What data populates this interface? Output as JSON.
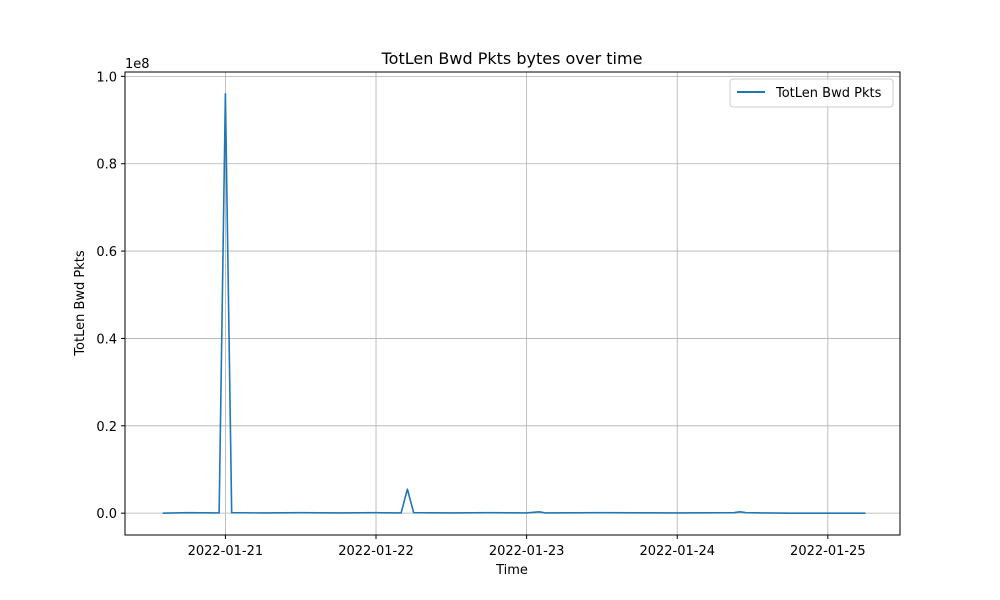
{
  "chart_data": {
    "type": "line",
    "title": "TotLen Bwd Pkts bytes over time",
    "xlabel": "Time",
    "ylabel": "TotLen Bwd Pkts",
    "y_scale_label": "1e8",
    "y_scale": 100000000,
    "xlim": [
      "2022-01-20T08:00",
      "2022-01-25T11:30"
    ],
    "ylim": [
      -5000000,
      101000000
    ],
    "x_ticks": [
      "2022-01-21",
      "2022-01-22",
      "2022-01-23",
      "2022-01-24",
      "2022-01-25"
    ],
    "y_ticks": [
      0.0,
      0.2,
      0.4,
      0.6,
      0.8,
      1.0
    ],
    "y_tick_labels": [
      "0.0",
      "0.2",
      "0.4",
      "0.6",
      "0.8",
      "1.0"
    ],
    "grid": true,
    "legend_position": "top-right",
    "series": [
      {
        "name": "TotLen Bwd Pkts",
        "color": "#1f77b4",
        "x": [
          "2022-01-20T14:00",
          "2022-01-20T18:00",
          "2022-01-20T23:00",
          "2022-01-21T00:00",
          "2022-01-21T01:00",
          "2022-01-21T06:00",
          "2022-01-21T12:00",
          "2022-01-21T18:00",
          "2022-01-22T00:00",
          "2022-01-22T04:00",
          "2022-01-22T05:00",
          "2022-01-22T06:00",
          "2022-01-22T12:00",
          "2022-01-22T18:00",
          "2022-01-23T00:00",
          "2022-01-23T02:00",
          "2022-01-23T03:00",
          "2022-01-23T12:00",
          "2022-01-24T00:00",
          "2022-01-24T09:00",
          "2022-01-24T10:00",
          "2022-01-24T11:00",
          "2022-01-24T14:00",
          "2022-01-24T18:00",
          "2022-01-25T00:00",
          "2022-01-25T06:00"
        ],
        "y": [
          0,
          100000,
          50000,
          96000000,
          100000,
          50000,
          100000,
          50000,
          100000,
          50000,
          5500000,
          100000,
          50000,
          100000,
          50000,
          300000,
          50000,
          100000,
          50000,
          100000,
          300000,
          100000,
          50000,
          0,
          0,
          0
        ]
      }
    ]
  }
}
